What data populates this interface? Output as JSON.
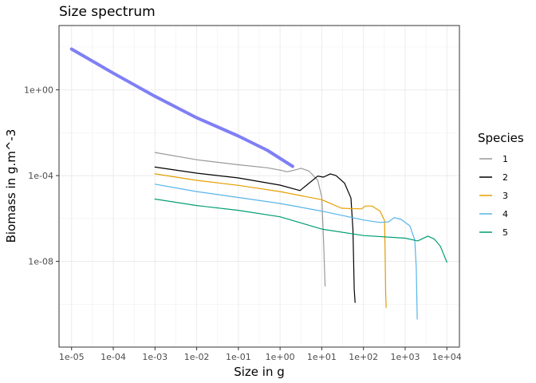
{
  "chart_data": {
    "type": "line",
    "title": "Size spectrum",
    "xlabel": "Size in g",
    "ylabel": "Biomass in g.m^-3",
    "x_scale": "log10",
    "y_scale": "log10",
    "xlim": [
      5e-06,
      20000.0
    ],
    "ylim": [
      1e-12,
      1000.0
    ],
    "x_ticks": [
      {
        "value": 1e-05,
        "label": "1e-05"
      },
      {
        "value": 0.0001,
        "label": "1e-04"
      },
      {
        "value": 0.001,
        "label": "1e-03"
      },
      {
        "value": 0.01,
        "label": "1e-02"
      },
      {
        "value": 0.1,
        "label": "1e-01"
      },
      {
        "value": 1,
        "label": "1e+00"
      },
      {
        "value": 10,
        "label": "1e+01"
      },
      {
        "value": 100,
        "label": "1e+02"
      },
      {
        "value": 1000,
        "label": "1e+03"
      },
      {
        "value": 10000,
        "label": "1e+04"
      }
    ],
    "y_ticks": [
      {
        "value": 1,
        "label": "1e+00"
      },
      {
        "value": 0.0001,
        "label": "1e-04"
      },
      {
        "value": 1e-08,
        "label": "1e-08"
      }
    ],
    "grid": true,
    "legend": {
      "title": "Species",
      "position": "right"
    },
    "series": [
      {
        "name": "",
        "color": "#7f7ff5",
        "line_width": 4,
        "x": [
          1e-05,
          0.0001,
          0.001,
          0.01,
          0.1,
          0.5,
          2
        ],
        "y": [
          80,
          6,
          0.5,
          0.05,
          0.007,
          0.0015,
          0.00027
        ]
      },
      {
        "name": "1",
        "color": "#999999",
        "line_width": 1.2,
        "x": [
          0.001,
          0.01,
          0.1,
          0.5,
          1,
          1.5,
          2.2,
          3.2,
          5,
          8,
          10,
          11,
          12
        ],
        "y": [
          0.0012,
          0.00055,
          0.00032,
          0.00023,
          0.00018,
          0.00015,
          0.00018,
          0.00022,
          0.00016,
          6e-05,
          1e-05,
          1e-07,
          7e-10
        ]
      },
      {
        "name": "2",
        "color": "#000000",
        "line_width": 1.2,
        "x": [
          0.001,
          0.01,
          0.1,
          1,
          3,
          8,
          11,
          16,
          22,
          35,
          50,
          56,
          60,
          63
        ],
        "y": [
          0.00025,
          0.00013,
          7.8e-05,
          3.6e-05,
          2e-05,
          9.5e-05,
          8.5e-05,
          0.00012,
          0.0001,
          4.5e-05,
          9e-06,
          3e-07,
          5e-10,
          1.2e-10
        ]
      },
      {
        "name": "3",
        "color": "#e69f00",
        "line_width": 1.2,
        "x": [
          0.001,
          0.01,
          0.1,
          1,
          10,
          30,
          90,
          110,
          160,
          250,
          320,
          330,
          340,
          350
        ],
        "y": [
          0.00012,
          6e-05,
          3.5e-05,
          1.8e-05,
          7.5e-06,
          3e-06,
          2.8e-06,
          3.8e-06,
          3.8e-06,
          2.2e-06,
          8e-07,
          4e-08,
          4e-10,
          7e-11
        ]
      },
      {
        "name": "4",
        "color": "#56b4e9",
        "line_width": 1.2,
        "x": [
          0.001,
          0.01,
          0.1,
          1,
          10,
          100,
          250,
          400,
          550,
          800,
          1300,
          1700,
          1850,
          1950
        ],
        "y": [
          4e-05,
          1.8e-05,
          9.5e-06,
          5e-06,
          2.2e-06,
          8.5e-07,
          6.5e-07,
          7e-07,
          1.1e-06,
          9e-07,
          4.5e-07,
          1e-07,
          5e-09,
          2e-11
        ]
      },
      {
        "name": "5",
        "color": "#009e73",
        "line_width": 1.2,
        "x": [
          0.001,
          0.01,
          0.1,
          1,
          10,
          100,
          1000,
          2000,
          3500,
          5000,
          7000,
          9000,
          10000
        ],
        "y": [
          8e-06,
          4e-06,
          2.4e-06,
          1.2e-06,
          3.2e-07,
          1.6e-07,
          1.2e-07,
          9e-08,
          1.5e-07,
          1.1e-07,
          5e-08,
          1.5e-08,
          9e-09
        ]
      }
    ]
  }
}
